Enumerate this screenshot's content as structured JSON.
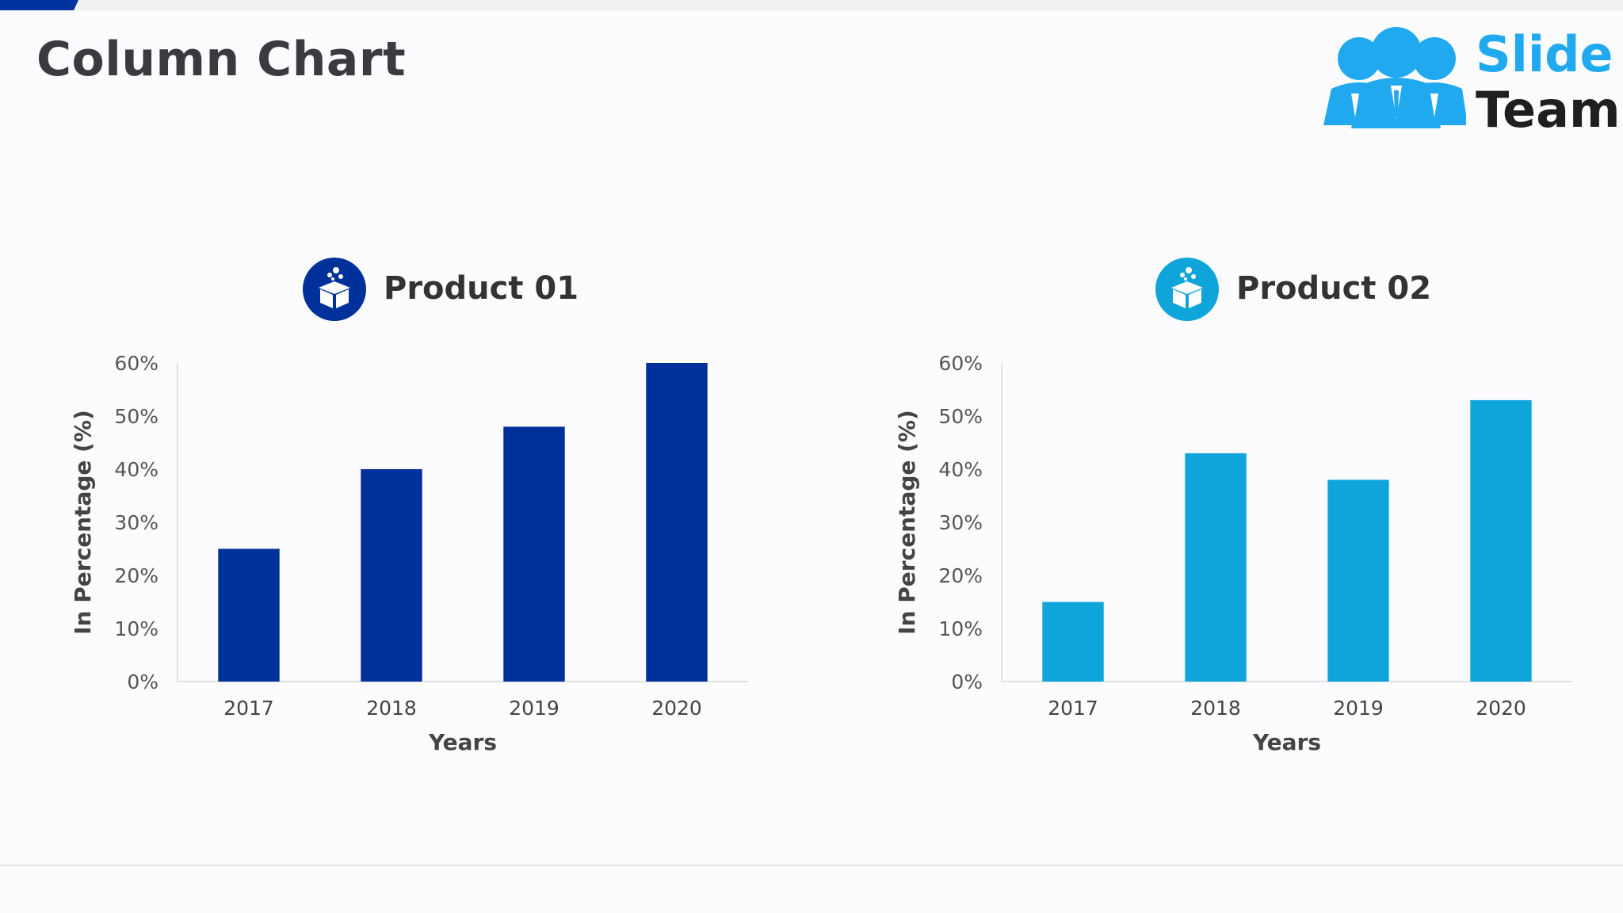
{
  "slide": {
    "title": "Column Chart"
  },
  "logo": {
    "word1": "Slide",
    "word2": "Team"
  },
  "charts": [
    {
      "title": "Product 01",
      "icon": "gift-box-icon",
      "color": "#00309a"
    },
    {
      "title": "Product 02",
      "icon": "gift-box-icon",
      "color": "#10a5da"
    }
  ],
  "chart_data": [
    {
      "type": "bar",
      "title": "Product 01",
      "categories": [
        "2017",
        "2018",
        "2019",
        "2020"
      ],
      "values": [
        25,
        40,
        48,
        60
      ],
      "xlabel": "Years",
      "ylabel": "In Percentage (%)",
      "ylim": [
        0,
        60
      ],
      "yticks": [
        "0%",
        "10%",
        "20%",
        "30%",
        "40%",
        "50%",
        "60%"
      ],
      "grid": false,
      "color": "#00309a"
    },
    {
      "type": "bar",
      "title": "Product 02",
      "categories": [
        "2017",
        "2018",
        "2019",
        "2020"
      ],
      "values": [
        15,
        43,
        38,
        53
      ],
      "xlabel": "Years",
      "ylabel": "In Percentage (%)",
      "ylim": [
        0,
        60
      ],
      "yticks": [
        "0%",
        "10%",
        "20%",
        "30%",
        "40%",
        "50%",
        "60%"
      ],
      "grid": false,
      "color": "#10a5da"
    }
  ]
}
